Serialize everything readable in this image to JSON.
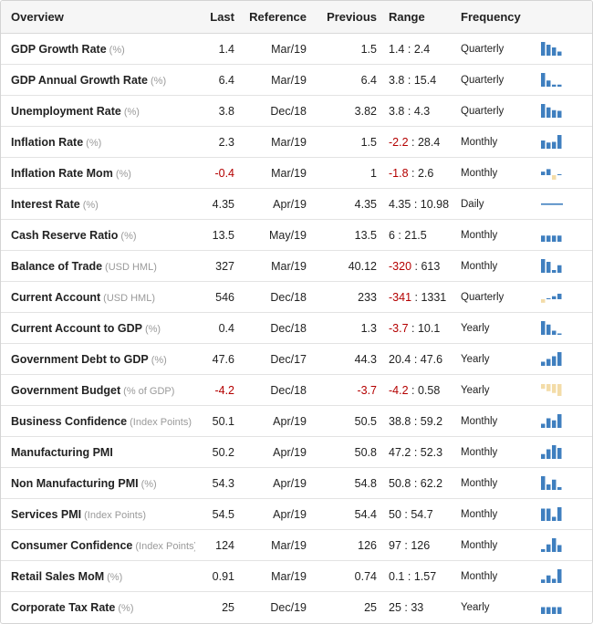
{
  "header": {
    "overview": "Overview",
    "last": "Last",
    "reference": "Reference",
    "previous": "Previous",
    "range": "Range",
    "frequency": "Frequency"
  },
  "colors": {
    "positive_bar": "#3f7fbf",
    "negative_bar": "#f3dca8",
    "negative_text": "#b40000"
  },
  "rows": [
    {
      "name": "GDP Growth Rate",
      "unit": "(%)",
      "last": "1.4",
      "reference": "Mar/19",
      "previous": "1.5",
      "range_low": "1.4",
      "range_high": "2.4",
      "frequency": "Quarterly",
      "trend": [
        1.0,
        0.8,
        0.6,
        0.3
      ]
    },
    {
      "name": "GDP Annual Growth Rate",
      "unit": "(%)",
      "last": "6.4",
      "reference": "Mar/19",
      "previous": "6.4",
      "range_low": "3.8",
      "range_high": "15.4",
      "frequency": "Quarterly",
      "trend": [
        1.0,
        0.45,
        0.15,
        0.15
      ]
    },
    {
      "name": "Unemployment Rate",
      "unit": "(%)",
      "last": "3.8",
      "reference": "Dec/18",
      "previous": "3.82",
      "range_low": "3.8",
      "range_high": "4.3",
      "frequency": "Quarterly",
      "trend": [
        1.0,
        0.75,
        0.55,
        0.5
      ]
    },
    {
      "name": "Inflation Rate",
      "unit": "(%)",
      "last": "2.3",
      "reference": "Mar/19",
      "previous": "1.5",
      "range_low": "-2.2",
      "range_high": "28.4",
      "frequency": "Monthly",
      "trend": [
        0.6,
        0.45,
        0.5,
        1.0
      ]
    },
    {
      "name": "Inflation Rate Mom",
      "unit": "(%)",
      "last": "-0.4",
      "reference": "Mar/19",
      "previous": "1",
      "range_low": "-1.8",
      "range_high": "2.6",
      "frequency": "Monthly",
      "trend": [
        0.35,
        0.6,
        -0.45,
        0.0
      ]
    },
    {
      "name": "Interest Rate",
      "unit": "(%)",
      "last": "4.35",
      "reference": "Apr/19",
      "previous": "4.35",
      "range_low": "4.35",
      "range_high": "10.98",
      "frequency": "Daily",
      "trend": [
        0.05,
        0.05,
        0.05,
        0.05
      ]
    },
    {
      "name": "Cash Reserve Ratio",
      "unit": "(%)",
      "last": "13.5",
      "reference": "May/19",
      "previous": "13.5",
      "range_low": "6",
      "range_high": "21.5",
      "frequency": "Monthly",
      "trend": [
        0.45,
        0.45,
        0.45,
        0.45
      ]
    },
    {
      "name": "Balance of Trade",
      "unit": "(USD HML)",
      "last": "327",
      "reference": "Mar/19",
      "previous": "40.12",
      "range_low": "-320",
      "range_high": "613",
      "frequency": "Monthly",
      "trend": [
        1.0,
        0.8,
        0.2,
        0.55
      ]
    },
    {
      "name": "Current Account",
      "unit": "(USD HML)",
      "last": "546",
      "reference": "Dec/18",
      "previous": "233",
      "range_low": "-341",
      "range_high": "1331",
      "frequency": "Quarterly",
      "trend": [
        -0.35,
        0.1,
        0.3,
        0.55
      ]
    },
    {
      "name": "Current Account to GDP",
      "unit": "(%)",
      "last": "0.4",
      "reference": "Dec/18",
      "previous": "1.3",
      "range_low": "-3.7",
      "range_high": "10.1",
      "frequency": "Yearly",
      "trend": [
        1.0,
        0.75,
        0.3,
        0.1
      ]
    },
    {
      "name": "Government Debt to GDP",
      "unit": "(%)",
      "last": "47.6",
      "reference": "Dec/17",
      "previous": "44.3",
      "range_low": "20.4",
      "range_high": "47.6",
      "frequency": "Yearly",
      "trend": [
        0.3,
        0.5,
        0.7,
        1.0
      ]
    },
    {
      "name": "Government Budget",
      "unit": "(% of GDP)",
      "last": "-4.2",
      "reference": "Dec/18",
      "previous": "-3.7",
      "range_low": "-4.2",
      "range_high": "0.58",
      "frequency": "Yearly",
      "trend": [
        -0.4,
        -0.6,
        -0.75,
        -1.0
      ]
    },
    {
      "name": "Business Confidence",
      "unit": "(Index Points)",
      "last": "50.1",
      "reference": "Apr/19",
      "previous": "50.5",
      "range_low": "38.8",
      "range_high": "59.2",
      "frequency": "Monthly",
      "trend": [
        0.3,
        0.7,
        0.55,
        1.0
      ]
    },
    {
      "name": "Manufacturing PMI",
      "unit": "",
      "last": "50.2",
      "reference": "Apr/19",
      "previous": "50.8",
      "range_low": "47.2",
      "range_high": "52.3",
      "frequency": "Monthly",
      "trend": [
        0.35,
        0.7,
        1.0,
        0.8
      ]
    },
    {
      "name": "Non Manufacturing PMI",
      "unit": "(%)",
      "last": "54.3",
      "reference": "Apr/19",
      "previous": "54.8",
      "range_low": "50.8",
      "range_high": "62.2",
      "frequency": "Monthly",
      "trend": [
        1.0,
        0.4,
        0.75,
        0.2
      ]
    },
    {
      "name": "Services PMI",
      "unit": "(Index Points)",
      "last": "54.5",
      "reference": "Apr/19",
      "previous": "54.4",
      "range_low": "50",
      "range_high": "54.7",
      "frequency": "Monthly",
      "trend": [
        0.9,
        0.9,
        0.3,
        1.0
      ]
    },
    {
      "name": "Consumer Confidence",
      "unit": "(Index Points)",
      "last": "124",
      "reference": "Mar/19",
      "previous": "126",
      "range_low": "97",
      "range_high": "126",
      "frequency": "Monthly",
      "trend": [
        0.2,
        0.55,
        1.0,
        0.5
      ]
    },
    {
      "name": "Retail Sales MoM",
      "unit": "(%)",
      "last": "0.91",
      "reference": "Mar/19",
      "previous": "0.74",
      "range_low": "0.1",
      "range_high": "1.57",
      "frequency": "Monthly",
      "trend": [
        0.25,
        0.55,
        0.3,
        1.0
      ]
    },
    {
      "name": "Corporate Tax Rate",
      "unit": "(%)",
      "last": "25",
      "reference": "Dec/19",
      "previous": "25",
      "range_low": "25",
      "range_high": "33",
      "frequency": "Yearly",
      "trend": [
        0.5,
        0.5,
        0.5,
        0.5
      ]
    }
  ]
}
